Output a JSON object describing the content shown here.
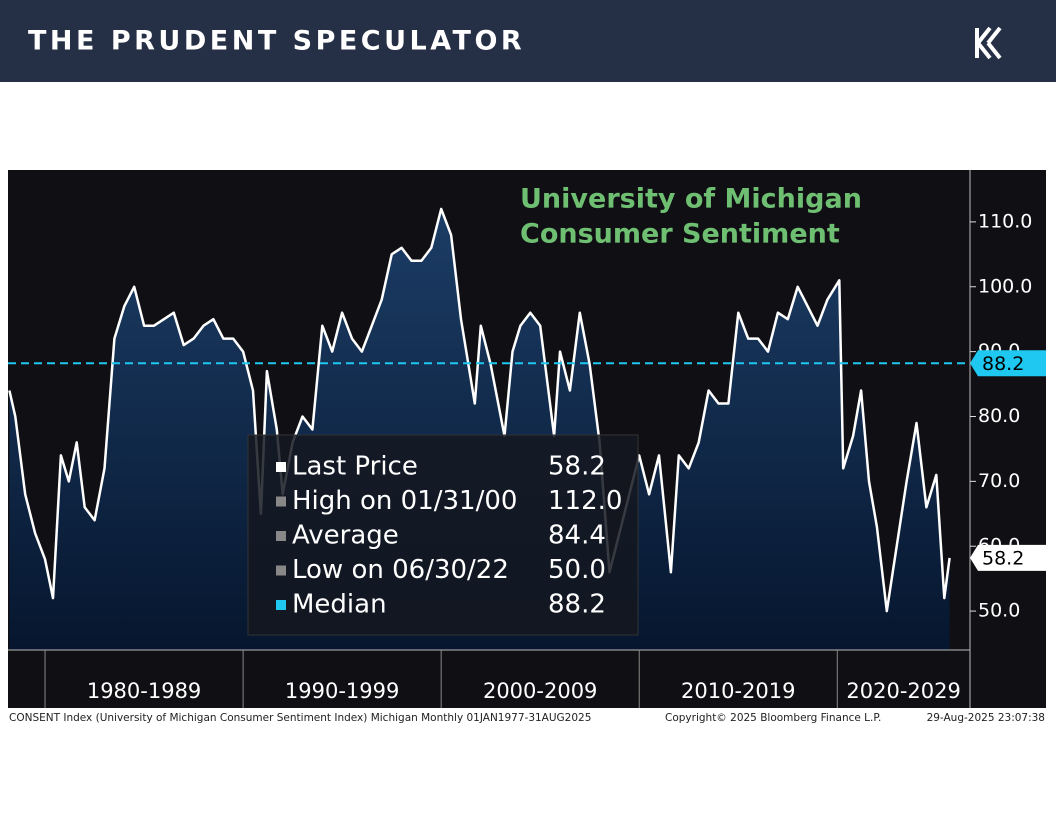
{
  "header": {
    "title": "THE PRUDENT SPECULATOR"
  },
  "chart_data": {
    "type": "area",
    "title": [
      "University of Michigan",
      "Consumer Sentiment"
    ],
    "title_color": "#6fbf73",
    "x": [
      1978.2,
      1978.5,
      1979,
      1979.5,
      1980,
      1980.4,
      1980.8,
      1981.2,
      1981.6,
      1982,
      1982.5,
      1983,
      1983.5,
      1984,
      1984.5,
      1985,
      1985.5,
      1986,
      1986.5,
      1987,
      1987.5,
      1988,
      1988.5,
      1989,
      1989.5,
      1990,
      1990.5,
      1990.9,
      1991.2,
      1991.7,
      1992,
      1992.5,
      1993,
      1993.5,
      1994,
      1994.5,
      1995,
      1995.5,
      1996,
      1996.5,
      1997,
      1997.5,
      1998,
      1998.5,
      1999,
      1999.5,
      2000,
      2000.5,
      2001,
      2001.7,
      2002,
      2002.5,
      2003.2,
      2003.6,
      2004,
      2004.5,
      2005,
      2005.7,
      2006,
      2006.5,
      2007,
      2007.5,
      2008,
      2008.5,
      2009,
      2009.5,
      2010,
      2010.5,
      2011,
      2011.6,
      2012,
      2012.5,
      2013,
      2013.5,
      2014,
      2014.5,
      2015,
      2015.5,
      2016,
      2016.5,
      2017,
      2017.5,
      2018,
      2018.5,
      2019,
      2019.5,
      2020.1,
      2020.3,
      2020.8,
      2021.2,
      2021.6,
      2022,
      2022.5,
      2023,
      2023.5,
      2024,
      2024.5,
      2025,
      2025.4,
      2025.67
    ],
    "series": [
      {
        "name": "Last Price",
        "color": "#ffffff",
        "values": [
          84,
          80,
          68,
          62,
          58,
          52,
          74,
          70,
          76,
          66,
          64,
          72,
          92,
          97,
          100,
          94,
          94,
          95,
          96,
          91,
          92,
          94,
          95,
          92,
          92,
          90,
          84,
          65,
          87,
          78,
          68,
          76,
          80,
          78,
          94,
          90,
          96,
          92,
          90,
          94,
          98,
          105,
          106,
          104,
          104,
          106,
          112,
          108,
          95,
          82,
          94,
          88,
          77,
          90,
          94,
          96,
          94,
          77,
          90,
          84,
          96,
          88,
          76,
          56,
          62,
          68,
          74,
          68,
          74,
          56,
          74,
          72,
          76,
          84,
          82,
          82,
          96,
          92,
          92,
          90,
          96,
          95,
          100,
          97,
          94,
          98,
          101,
          72,
          77,
          84,
          70,
          63,
          50,
          60,
          70,
          79,
          66,
          71,
          52,
          58.2
        ]
      }
    ],
    "xlim": [
      1978.13,
      2026.7
    ],
    "xticks": [
      1980,
      1990,
      2000,
      2010,
      2020
    ],
    "decades": [
      "1980-1989",
      "1990-1999",
      "2000-2009",
      "2010-2019",
      "2020-2029"
    ],
    "ylim": [
      44,
      118
    ],
    "yticks": [
      {
        "value": 50,
        "label": "50.0"
      },
      {
        "value": 60,
        "label": "60.0"
      },
      {
        "value": 70,
        "label": "70.0"
      },
      {
        "value": 80,
        "label": "80.0"
      },
      {
        "value": 90,
        "label": "90.0"
      },
      {
        "value": 100,
        "label": "100.0"
      },
      {
        "value": 110,
        "label": "110.0"
      }
    ],
    "median_color": "#1ec8f0",
    "legend": [
      {
        "name": "Last Price",
        "value": 58.2
      },
      {
        "name": "High on 01/31/00",
        "value": 112,
        "value_label": "112.0"
      },
      {
        "name": "Average",
        "value": 84.4
      },
      {
        "name": "Low on 06/30/22",
        "value": 50,
        "value_label": "50.0"
      },
      {
        "name": "Median",
        "value": 88.2
      }
    ]
  },
  "footer": {
    "source": "CONSENT Index (University of Michigan Consumer Sentiment Index) Michigan  Monthly 01JAN1977-31AUG2025",
    "copyright": "Copyright© 2025 Bloomberg Finance L.P.",
    "timestamp": "29-Aug-2025 23:07:38"
  }
}
